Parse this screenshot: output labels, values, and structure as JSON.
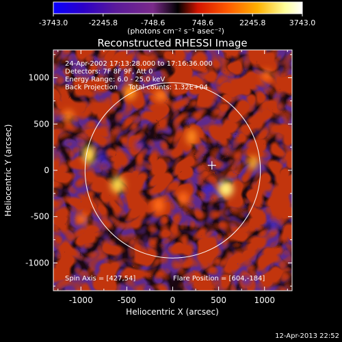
{
  "colorbar": {
    "tick_labels": [
      "-3743.0",
      "-2245.8",
      "-748.6",
      "748.6",
      "2245.8",
      "3743.0"
    ],
    "units_label": "(photons cm⁻² s⁻¹ asec⁻²)",
    "colors": [
      "#0a00ff",
      "#2b00c8",
      "#5a1a9a",
      "#7a2a8a",
      "#000000",
      "#d21400",
      "#ff5a00",
      "#ffb000",
      "#ffff9a",
      "#ffffff"
    ]
  },
  "plot": {
    "title": "Reconstructed RHESSI Image",
    "info_lines": [
      "24-Apr-2002 17:13:28.000 to 17:16:36.000",
      "Detectors: 7F 8F 9F, Att 0",
      "Energy Range: 6.0 - 25.0 keV",
      "Back Projection     Total counts: 1.32E+04"
    ],
    "spin_axis": "Spin Axis = [427,54]",
    "flare_position": "Flare Position = [604,-184]",
    "x_axis_label": "Heliocentric X (arcsec)",
    "y_axis_label": "Heliocentric Y (arcsec)",
    "x_ticks": [
      "-1000",
      "-500",
      "0",
      "500",
      "1000"
    ],
    "y_ticks": [
      "1000",
      "500",
      "0",
      "-500",
      "-1000"
    ],
    "x_range": [
      -1300,
      1300
    ],
    "y_range": [
      -1300,
      1300
    ],
    "limb_radius": 955,
    "spin_axis_center": [
      427,
      54
    ]
  },
  "footer": {
    "timestamp": "12-Apr-2013 22:52"
  }
}
